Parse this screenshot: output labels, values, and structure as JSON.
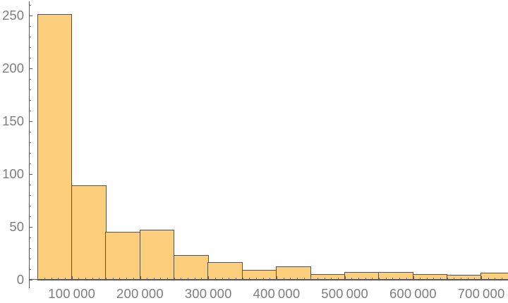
{
  "chart_data": {
    "type": "bar",
    "subtype": "histogram",
    "title": "",
    "xlabel": "",
    "ylabel": "",
    "grid": false,
    "legend": null,
    "bin_width": 50000,
    "bin_edges": [
      50000,
      100000,
      150000,
      200000,
      250000,
      300000,
      350000,
      400000,
      450000,
      500000,
      550000,
      600000,
      650000,
      700000,
      750000
    ],
    "counts": [
      251,
      89,
      45,
      47,
      23,
      16,
      9,
      12,
      5,
      7,
      7,
      5,
      4,
      6
    ],
    "xlim": [
      40000,
      738000
    ],
    "ylim": [
      0,
      263
    ],
    "x_major_ticks": [
      {
        "value": 100000,
        "label": "100 000"
      },
      {
        "value": 200000,
        "label": "200 000"
      },
      {
        "value": 300000,
        "label": "300 000"
      },
      {
        "value": 400000,
        "label": "400 000"
      },
      {
        "value": 500000,
        "label": "500 000"
      },
      {
        "value": 600000,
        "label": "600 000"
      },
      {
        "value": 700000,
        "label": "700 000"
      }
    ],
    "x_minor_tick_step": 10000,
    "y_major_ticks": [
      {
        "value": 0,
        "label": "0"
      },
      {
        "value": 50,
        "label": "50"
      },
      {
        "value": 100,
        "label": "100"
      },
      {
        "value": 150,
        "label": "150"
      },
      {
        "value": 200,
        "label": "200"
      },
      {
        "value": 250,
        "label": "250"
      }
    ],
    "y_minor_tick_step": 10,
    "colors": {
      "bar_fill": "#FDCF7D",
      "bar_edge": "#5C5347",
      "axis": "#5C5C5C",
      "tick": "#6B6B6B",
      "tick_label": "#7D7D7D",
      "background": "#FFFFFF"
    }
  }
}
